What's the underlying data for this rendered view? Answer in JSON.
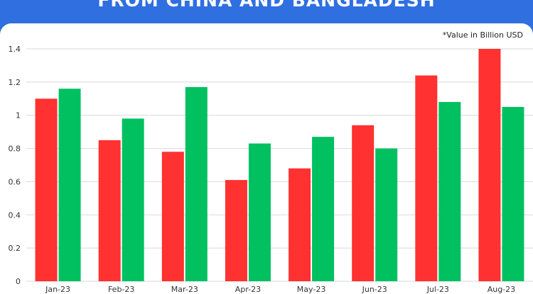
{
  "header": {
    "title": "FROM CHINA AND BANGLADESH"
  },
  "note": "*Value in Billion USD",
  "colors": {
    "background": "#2f6fe0",
    "red": "#ff3131",
    "green": "#00c060",
    "grid": "#d9d9d9"
  },
  "chart_data": {
    "type": "bar",
    "categories": [
      "Jan-23",
      "Feb-23",
      "Mar-23",
      "Apr-23",
      "May-23",
      "Jun-23",
      "Jul-23",
      "Aug-23"
    ],
    "series": [
      {
        "color": "#ff3131",
        "values": [
          1.1,
          0.85,
          0.78,
          0.61,
          0.68,
          0.94,
          1.24,
          1.4
        ]
      },
      {
        "color": "#00c060",
        "values": [
          1.16,
          0.98,
          1.17,
          0.83,
          0.87,
          0.8,
          1.08,
          1.05
        ]
      }
    ],
    "yticks": [
      "0",
      "0.2",
      "0.4",
      "0.6",
      "0.8",
      "1",
      "1.2",
      "1.4"
    ],
    "ylim": [
      0,
      1.4
    ],
    "grid": true,
    "legend": "none"
  }
}
